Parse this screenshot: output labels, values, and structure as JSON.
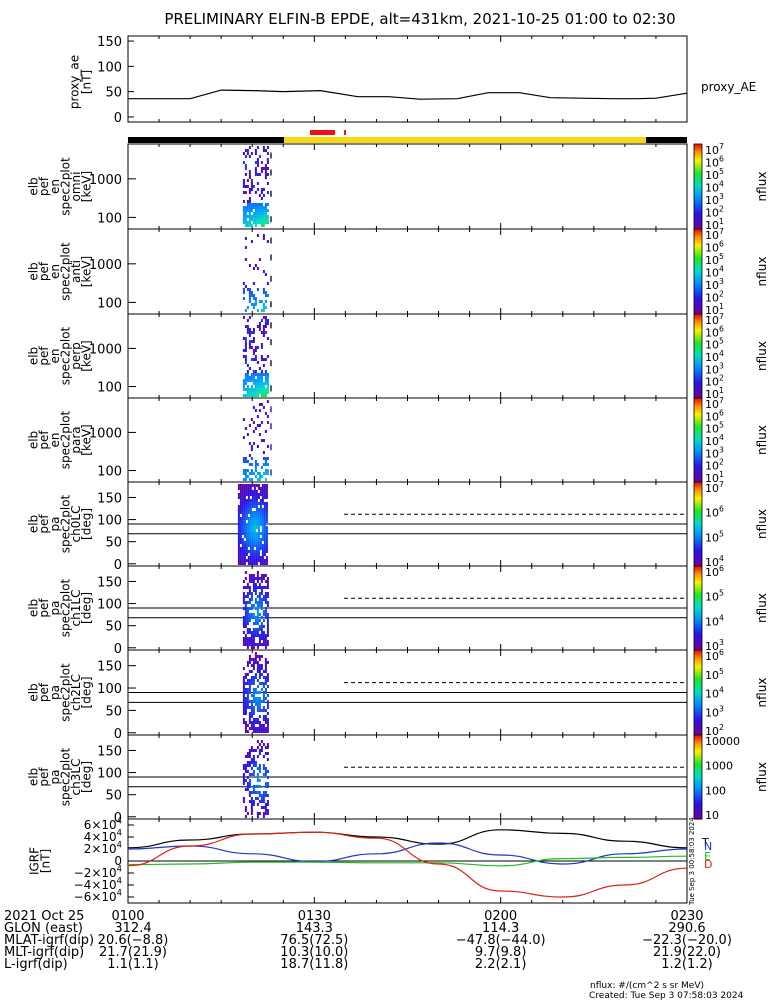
{
  "title": "PRELIMINARY ELFIN-B EPDE, alt=431km, 2021-10-25 01:00 to 02:30",
  "colors": {
    "ae_line": "#000000",
    "bar_black": "#000000",
    "bar_yellow": "#f5d80f",
    "bar_red": "#ee1111",
    "grf_n": "#1f36c8",
    "grf_e": "#22bb22",
    "grf_d": "#dd2211",
    "grf_t": "#000000"
  },
  "chart_data": [
    {
      "type": "line",
      "panel": "proxy_ae",
      "ylabel": "proxy_ae\n[nT]",
      "yticks": [
        "150",
        "100",
        "50",
        "0"
      ],
      "ylim": [
        -10,
        160
      ],
      "legend": "proxy_AE",
      "x_minutes": [
        0,
        10,
        15,
        20,
        25,
        31,
        37,
        42,
        47,
        53,
        58,
        63,
        68,
        73,
        78,
        82,
        85,
        90
      ],
      "values": [
        36,
        36,
        53,
        52,
        50,
        52,
        40,
        40,
        35,
        36,
        48,
        48,
        38,
        37,
        36,
        36,
        37,
        47
      ]
    },
    {
      "type": "heatmap",
      "panel": "en_omni",
      "ylabel": "elb\npef\nen\nspec2plot\nomni\n[keV]",
      "yticks": [
        "1000",
        "100"
      ],
      "zlabel": "nflux",
      "zticks": [
        "10^7",
        "10^6",
        "10^5",
        "10^4",
        "10^3",
        "10^2",
        "10^1"
      ],
      "zlim": [
        10,
        10000000
      ]
    },
    {
      "type": "heatmap",
      "panel": "en_anti",
      "ylabel": "elb\npef\nen\nspec2plot\nanti\n[keV]",
      "yticks": [
        "1000",
        "100"
      ],
      "zlabel": "nflux",
      "zticks": [
        "10^7",
        "10^6",
        "10^5",
        "10^4",
        "10^3",
        "10^2",
        "10^1"
      ],
      "zlim": [
        10,
        10000000
      ]
    },
    {
      "type": "heatmap",
      "panel": "en_perp",
      "ylabel": "elb\npef\nen\nspec2plot\nperp\n[keV]",
      "yticks": [
        "1000",
        "100"
      ],
      "zlabel": "nflux",
      "zticks": [
        "10^7",
        "10^6",
        "10^5",
        "10^4",
        "10^3",
        "10^2",
        "10^1"
      ],
      "zlim": [
        10,
        10000000
      ]
    },
    {
      "type": "heatmap",
      "panel": "en_para",
      "ylabel": "elb\npef\nen\nspec2plot\npara\n[keV]",
      "yticks": [
        "1000",
        "100"
      ],
      "zlabel": "nflux",
      "zticks": [
        "10^7",
        "10^6",
        "10^5",
        "10^4",
        "10^3",
        "10^2",
        "10^1"
      ],
      "zlim": [
        10,
        10000000
      ]
    },
    {
      "type": "heatmap",
      "panel": "pa_ch0",
      "ylabel": "elb\npef\npa\nspec2plot\nch0LC\n[deg]",
      "yticks": [
        "150",
        "100",
        "50",
        "0"
      ],
      "zlabel": "nflux",
      "zticks": [
        "10^7",
        "10^6",
        "10^5",
        "10^4"
      ],
      "zlim": [
        1000,
        10000000
      ]
    },
    {
      "type": "heatmap",
      "panel": "pa_ch1",
      "ylabel": "elb\npef\npa\nspec2plot\nch1LC\n[deg]",
      "yticks": [
        "150",
        "100",
        "50",
        "0"
      ],
      "zlabel": "nflux",
      "zticks": [
        "10^6",
        "10^5",
        "10^4",
        "10^3"
      ],
      "zlim": [
        1000,
        3000000
      ]
    },
    {
      "type": "heatmap",
      "panel": "pa_ch2",
      "ylabel": "elb\npef\npa\nspec2plot\nch2LC\n[deg]",
      "yticks": [
        "150",
        "100",
        "50",
        "0"
      ],
      "zlabel": "nflux",
      "zticks": [
        "10^6",
        "10^5",
        "10^4",
        "10^3",
        "10^2"
      ],
      "zlim": [
        100,
        2000000
      ]
    },
    {
      "type": "heatmap",
      "panel": "pa_ch3",
      "ylabel": "elb\npef\npa\nspec2plot\nch3LC\n[deg]",
      "yticks": [
        "150",
        "100",
        "50",
        "0"
      ],
      "zlabel": "nflux",
      "zticks": [
        "10000",
        "1000",
        "100",
        "10"
      ],
      "zlim": [
        10,
        30000
      ]
    },
    {
      "type": "line",
      "panel": "igrf",
      "ylabel": "IGRF\n[nT]",
      "yticks": [
        "6×10^4",
        "4×10^4",
        "2×10^4",
        "0",
        "−2×10^4",
        "−4×10^4",
        "−6×10^4"
      ],
      "ylim": [
        -70000,
        70000
      ],
      "legend": [
        "T",
        "N",
        "E",
        "D"
      ],
      "x_minutes": [
        0,
        10,
        20,
        30,
        40,
        50,
        60,
        70,
        80,
        90
      ],
      "series": [
        {
          "name": "T",
          "values": [
            22000,
            35000,
            45000,
            48000,
            40000,
            28000,
            52000,
            46000,
            33000,
            22000
          ]
        },
        {
          "name": "N",
          "values": [
            20000,
            25000,
            12000,
            -1000,
            12000,
            30000,
            10000,
            -5000,
            12000,
            20000
          ]
        },
        {
          "name": "E",
          "values": [
            -6000,
            -5000,
            -2000,
            -2000,
            -3000,
            -3000,
            -8000,
            4000,
            6000,
            8000
          ]
        },
        {
          "name": "D",
          "values": [
            -8000,
            25000,
            45000,
            48000,
            38000,
            -5000,
            -50000,
            -60000,
            -40000,
            -12000
          ]
        }
      ]
    }
  ],
  "time_axis": {
    "date_label": "2021 Oct 25",
    "ticks": [
      "0100",
      "0130",
      "0200",
      "0230"
    ]
  },
  "ephemeris": {
    "labels": [
      "GLON (east)",
      "MLAT-igrf(dip)",
      "MLT-igrf(dip)",
      "L-igrf(dip)"
    ],
    "rows": [
      [
        "312.4",
        "143.3",
        "114.3",
        "290.6"
      ],
      [
        "20.6(−8.8)",
        "76.5(72.5)",
        "−47.8(−44.0)",
        "−22.3(−20.0)"
      ],
      [
        "21.7(21.9)",
        "10.3(10.0)",
        "9.7(9.8)",
        "21.9(22.0)"
      ],
      [
        "1.1(1.1)",
        "18.7(11.8)",
        "2.2(2.1)",
        "1.2(1.2)"
      ]
    ]
  },
  "footer": {
    "units": "nflux: #/(cm^2 s sr MeV)",
    "created": "Created: Tue Sep  3 07:58:03 2024",
    "vertical": "Tue Sep  3 00:58:03 2024"
  }
}
